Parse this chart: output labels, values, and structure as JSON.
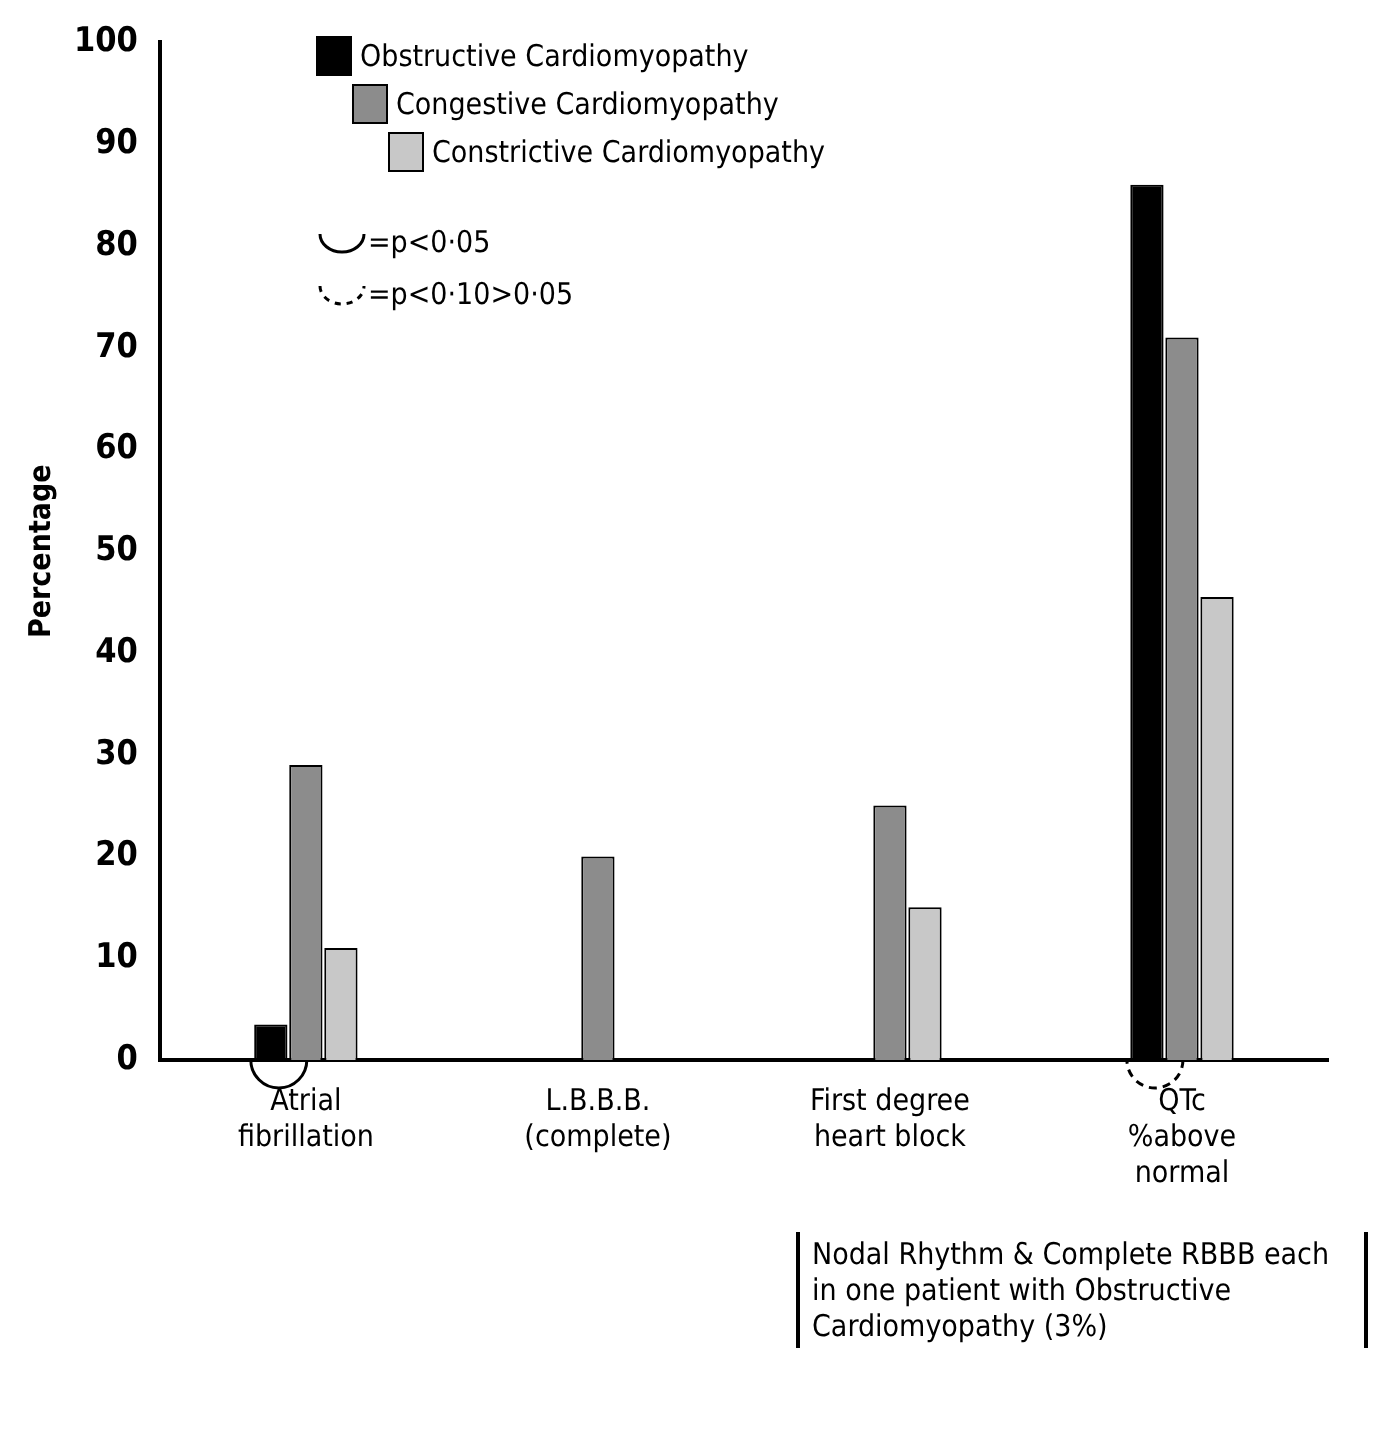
{
  "chart_data": {
    "type": "bar",
    "ylabel": "Percentage",
    "categories": [
      "Atrial\nfibrillation",
      "L.B.B.B.\n(complete)",
      "First degree\nheart block",
      "QTc\n%above\nnormal"
    ],
    "series": [
      {
        "name": "Obstructive Cardiomyopathy",
        "color": "#000000",
        "values": [
          3.5,
          0,
          0,
          86
        ]
      },
      {
        "name": "Congestive Cardiomyopathy",
        "color": "#8c8c8c",
        "values": [
          29,
          20,
          25,
          71
        ]
      },
      {
        "name": "Constrictive Cardiomyopathy",
        "color": "#c8c8c8",
        "values": [
          11,
          0,
          15,
          45.5
        ]
      }
    ],
    "ylim": [
      0,
      100
    ],
    "yticks": [
      0,
      10,
      20,
      30,
      40,
      50,
      60,
      70,
      80,
      90,
      100
    ],
    "grid": false,
    "legend": "top left",
    "annotations": [
      "=p<0·05",
      "=p<0·10>0·05",
      "Nodal Rhythm & Complete RBBB each in one patient with Obstructive Cardiomyopathy (3%)"
    ]
  }
}
